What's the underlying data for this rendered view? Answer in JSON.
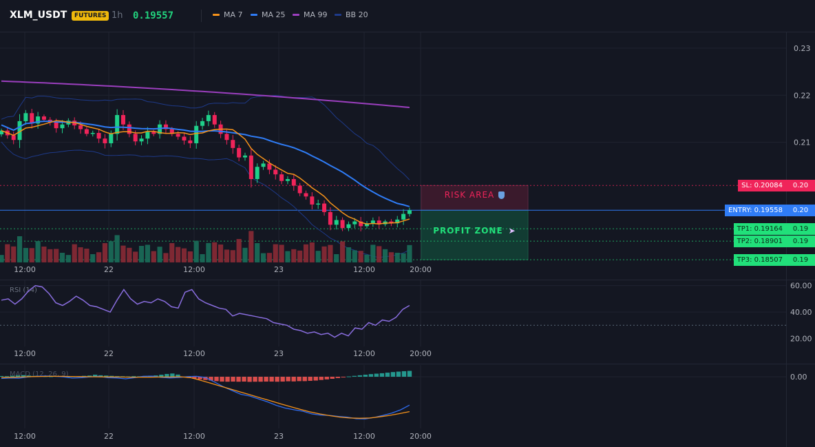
{
  "header": {
    "symbol": "XLM_USDT",
    "badge": "FUTURES",
    "timeframe": "1h",
    "price": "0.19557",
    "legend": [
      {
        "label": "MA 7",
        "color": "#f7931a"
      },
      {
        "label": "MA 25",
        "color": "#2f7cf6"
      },
      {
        "label": "MA 99",
        "color": "#9c3fbf"
      },
      {
        "label": "BB 20",
        "color": "#1e3a8a"
      }
    ]
  },
  "colors": {
    "up": "#1fd08a",
    "down": "#f0245a",
    "vol_up": "#1a6e5a",
    "vol_down": "#8a2a35",
    "background": "#141722",
    "grid": "#1f2330"
  },
  "chart_data": [
    {
      "type": "candlestick",
      "title": "",
      "x_ticks": [
        "12:00",
        "22",
        "12:00",
        "23",
        "12:00",
        "20:00"
      ],
      "y_ticks": [
        "0.23",
        "0.22",
        "0.21"
      ],
      "ylim": [
        0.1845,
        0.2335
      ],
      "close_series": [
        0.2125,
        0.2115,
        0.2105,
        0.2145,
        0.2162,
        0.214,
        0.2155,
        0.2148,
        0.2142,
        0.213,
        0.2138,
        0.2146,
        0.2136,
        0.2128,
        0.2118,
        0.212,
        0.2108,
        0.2098,
        0.2118,
        0.2158,
        0.2138,
        0.2118,
        0.2102,
        0.2108,
        0.2122,
        0.2118,
        0.2138,
        0.2128,
        0.2118,
        0.2112,
        0.2104,
        0.2098,
        0.2135,
        0.2145,
        0.2158,
        0.2138,
        0.2118,
        0.2105,
        0.2088,
        0.2068,
        0.2072,
        0.2022,
        0.2048,
        0.2055,
        0.2042,
        0.2032,
        0.2018,
        0.2022,
        0.2008,
        0.1992,
        0.1985,
        0.1968,
        0.197,
        0.1952,
        0.1925,
        0.1935,
        0.1918,
        0.1926,
        0.1932,
        0.1922,
        0.1928,
        0.1934,
        0.1926,
        0.1932,
        0.1928,
        0.1936,
        0.1948,
        0.1956
      ]
    },
    {
      "type": "line",
      "ylabel": "RSI (14)",
      "y_ticks": [
        "60.00",
        "40.00",
        "20.00"
      ],
      "ylim": [
        14,
        64
      ],
      "reference_line": 30,
      "values": [
        49,
        50,
        46,
        50,
        56,
        60,
        59,
        54,
        47,
        45,
        48,
        52,
        49,
        45,
        44,
        42,
        40,
        49,
        57,
        50,
        46,
        48,
        47,
        50,
        48,
        44,
        43,
        55,
        57,
        50,
        47,
        45,
        43,
        42,
        37,
        39,
        38,
        37,
        36,
        35,
        32,
        31,
        30,
        27,
        26,
        24,
        25,
        23,
        24,
        21,
        24,
        22,
        28,
        27,
        32,
        30,
        34,
        33,
        36,
        42,
        45
      ]
    },
    {
      "type": "bar",
      "ylabel": "MACD (12, 26, 9)",
      "y_ticks": [
        "0.00"
      ],
      "ylim": [
        -0.00353,
        0.0008
      ],
      "histogram": [
        5e-05,
        4e-05,
        7e-05,
        9e-05,
        0.00011,
        8e-05,
        6e-05,
        5e-05,
        3e-05,
        2e-05,
        4e-05,
        3e-05,
        2e-05,
        3e-05,
        4e-05,
        6e-05,
        8e-05,
        0.00014,
        0.0001,
        8e-05,
        6e-05,
        4e-05,
        3e-05,
        2e-05,
        4e-05,
        3e-05,
        5e-05,
        7e-05,
        9e-05,
        0.00014,
        0.00019,
        0.00022,
        0.00015,
        -4e-05,
        -8e-05,
        -0.00013,
        -0.00018,
        -0.00022,
        -0.00026,
        -0.0003,
        -0.00033,
        -0.00034,
        -0.00033,
        -0.00034,
        -0.00033,
        -0.00035,
        -0.00034,
        -0.00034,
        -0.00033,
        -0.00033,
        -0.00034,
        -0.00033,
        -0.00031,
        -0.00032,
        -0.0003,
        -0.0003,
        -0.00028,
        -0.00026,
        -0.00022,
        -0.00018,
        -0.00014,
        -9e-05,
        -4e-05,
        2e-05,
        6e-05,
        0.0001,
        0.00014,
        0.00018,
        0.00021,
        0.00024,
        0.00028,
        0.00032,
        0.00035,
        0.00038,
        0.0004
      ],
      "macd": [
        -0.00012,
        -8e-05,
        -0.0001,
        -1e-05,
        3e-05,
        5e-05,
        3e-05,
        -1e-05,
        -9e-05,
        -6e-05,
        -1e-05,
        3e-05,
        -6e-05,
        -8e-05,
        -0.00014,
        -6e-05,
        3e-05,
        4e-05,
        -4e-05,
        -8e-05,
        -5e-05,
        1e-05,
        3e-05,
        -5e-05,
        -0.00036,
        -0.00068,
        -0.00094,
        -0.0012,
        -0.00132,
        -0.00152,
        -0.00172,
        -0.00196,
        -0.00214,
        -0.00226,
        -0.00236,
        -0.00254,
        -0.00262,
        -0.00264,
        -0.00271,
        -0.00276,
        -0.00287,
        -0.00288,
        -0.00278,
        -0.00264,
        -0.00248,
        -0.00226,
        -0.00194
      ],
      "signal": [
        -5e-05,
        -4e-05,
        -2e-05,
        1e-05,
        2e-05,
        3e-05,
        3e-05,
        2e-05,
        1e-05,
        0,
        -1e-05,
        -1e-05,
        -2e-05,
        -3e-05,
        -3e-05,
        -3e-05,
        -2e-05,
        -2e-05,
        0,
        -6e-05,
        -0.00024,
        -0.00044,
        -0.00064,
        -0.00084,
        -0.00104,
        -0.00124,
        -0.00144,
        -0.00164,
        -0.00184,
        -0.00204,
        -0.00222,
        -0.0024,
        -0.00254,
        -0.00266,
        -0.00276,
        -0.00282,
        -0.00284,
        -0.00282,
        -0.00274,
        -0.00264,
        -0.00252,
        -0.00238
      ]
    }
  ],
  "levels": {
    "sl": {
      "label": "SL: 0.20084",
      "axis": "0.20",
      "value": 0.20084,
      "color": "#f0245a"
    },
    "entry": {
      "label": "ENTRY: 0.19558",
      "axis": "0.20",
      "value": 0.19558,
      "color": "#2f7cf6"
    },
    "tps": [
      {
        "label": "TP1: 0.19164",
        "axis": "0.19",
        "value": 0.19164
      },
      {
        "label": "TP2: 0.18901",
        "axis": "0.19",
        "value": 0.18901
      },
      {
        "label": "TP3: 0.18507",
        "axis": "0.19",
        "value": 0.18507
      }
    ],
    "tp_color": "#21e07a"
  },
  "zones": {
    "risk_label": "RISK AREA",
    "risk_icon": "shield-icon",
    "profit_label": "PROFIT ZONE",
    "profit_icon": "rocket-icon"
  }
}
